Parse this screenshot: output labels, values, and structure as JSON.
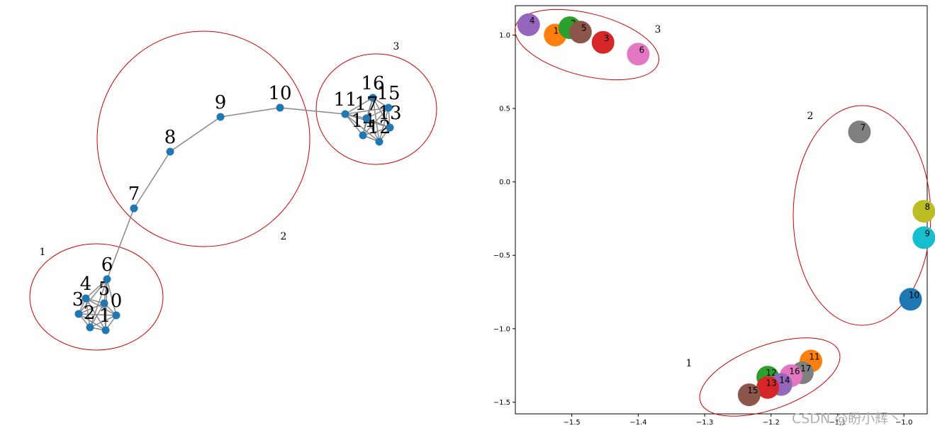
{
  "chart_data": [
    {
      "type": "network",
      "nodes": [
        {
          "id": "0"
        },
        {
          "id": "1"
        },
        {
          "id": "2"
        },
        {
          "id": "3"
        },
        {
          "id": "4"
        },
        {
          "id": "5"
        },
        {
          "id": "6"
        },
        {
          "id": "7"
        },
        {
          "id": "8"
        },
        {
          "id": "9"
        },
        {
          "id": "10"
        },
        {
          "id": "11"
        },
        {
          "id": "12"
        },
        {
          "id": "13"
        },
        {
          "id": "14"
        },
        {
          "id": "15"
        },
        {
          "id": "16"
        },
        {
          "id": "17"
        }
      ],
      "edges": [
        [
          "0",
          "1"
        ],
        [
          "0",
          "2"
        ],
        [
          "0",
          "3"
        ],
        [
          "0",
          "4"
        ],
        [
          "0",
          "5"
        ],
        [
          "0",
          "6"
        ],
        [
          "1",
          "2"
        ],
        [
          "1",
          "3"
        ],
        [
          "1",
          "4"
        ],
        [
          "1",
          "5"
        ],
        [
          "1",
          "6"
        ],
        [
          "2",
          "3"
        ],
        [
          "2",
          "4"
        ],
        [
          "2",
          "5"
        ],
        [
          "2",
          "6"
        ],
        [
          "3",
          "4"
        ],
        [
          "3",
          "5"
        ],
        [
          "3",
          "6"
        ],
        [
          "4",
          "5"
        ],
        [
          "4",
          "6"
        ],
        [
          "5",
          "6"
        ],
        [
          "6",
          "7"
        ],
        [
          "7",
          "8"
        ],
        [
          "8",
          "9"
        ],
        [
          "9",
          "10"
        ],
        [
          "10",
          "11"
        ],
        [
          "11",
          "12"
        ],
        [
          "11",
          "13"
        ],
        [
          "11",
          "14"
        ],
        [
          "11",
          "15"
        ],
        [
          "11",
          "16"
        ],
        [
          "11",
          "17"
        ],
        [
          "12",
          "13"
        ],
        [
          "12",
          "14"
        ],
        [
          "12",
          "15"
        ],
        [
          "12",
          "16"
        ],
        [
          "12",
          "17"
        ],
        [
          "13",
          "14"
        ],
        [
          "13",
          "15"
        ],
        [
          "13",
          "16"
        ],
        [
          "13",
          "17"
        ],
        [
          "14",
          "15"
        ],
        [
          "14",
          "16"
        ],
        [
          "14",
          "17"
        ],
        [
          "15",
          "16"
        ],
        [
          "15",
          "17"
        ],
        [
          "16",
          "17"
        ]
      ],
      "clusters": [
        {
          "label": "1",
          "nodes": [
            "0",
            "1",
            "2",
            "3",
            "4",
            "5",
            "6"
          ]
        },
        {
          "label": "2",
          "nodes": [
            "7",
            "8",
            "9",
            "10"
          ]
        },
        {
          "label": "3",
          "nodes": [
            "11",
            "12",
            "13",
            "14",
            "15",
            "16",
            "17"
          ]
        }
      ],
      "node_color": "#1f77b4",
      "edge_color": "#888888",
      "cluster_color": "#cc0000"
    },
    {
      "type": "scatter",
      "xlim": [
        -1.585,
        -0.965
      ],
      "ylim": [
        -1.58,
        1.2
      ],
      "xticks": [
        -1.5,
        -1.4,
        -1.3,
        -1.2,
        -1.1,
        -1.0
      ],
      "yticks": [
        -1.5,
        -1.0,
        -0.5,
        0.0,
        0.5,
        1.0
      ],
      "xtick_labels": [
        "−1.5",
        "−1.4",
        "−1.3",
        "−1.2",
        "−1.1",
        "−1.0"
      ],
      "ytick_labels": [
        "−1.5",
        "−1.0",
        "−0.5",
        "0.0",
        "0.5",
        "1.0"
      ],
      "points": [
        {
          "label": "4",
          "x": -1.565,
          "y": 1.07,
          "color": "#9467bd"
        },
        {
          "label": "10",
          "x": -1.525,
          "y": 1.0,
          "color": "#ff7f0e"
        },
        {
          "label": "2",
          "x": -1.503,
          "y": 1.05,
          "color": "#2ca02c"
        },
        {
          "label": "5",
          "x": -1.487,
          "y": 1.02,
          "color": "#8c564b"
        },
        {
          "label": "3",
          "x": -1.453,
          "y": 0.95,
          "color": "#d62728"
        },
        {
          "label": "6",
          "x": -1.4,
          "y": 0.87,
          "color": "#e377c2"
        },
        {
          "label": "7",
          "x": -1.067,
          "y": 0.34,
          "color": "#7f7f7f"
        },
        {
          "label": "8",
          "x": -0.97,
          "y": -0.2,
          "color": "#bcbd22"
        },
        {
          "label": "9",
          "x": -0.97,
          "y": -0.38,
          "color": "#17becf"
        },
        {
          "label": "10",
          "x": -0.99,
          "y": -0.8,
          "color": "#1f77b4"
        },
        {
          "label": "11",
          "x": -1.14,
          "y": -1.22,
          "color": "#ff7f0e"
        },
        {
          "label": "17",
          "x": -1.153,
          "y": -1.3,
          "color": "#7f7f7f"
        },
        {
          "label": "16",
          "x": -1.17,
          "y": -1.32,
          "color": "#e377c2"
        },
        {
          "label": "12",
          "x": -1.205,
          "y": -1.33,
          "color": "#2ca02c"
        },
        {
          "label": "14",
          "x": -1.185,
          "y": -1.38,
          "color": "#9467bd"
        },
        {
          "label": "13",
          "x": -1.205,
          "y": -1.4,
          "color": "#d62728"
        },
        {
          "label": "15",
          "x": -1.233,
          "y": -1.45,
          "color": "#8c564b"
        }
      ],
      "clusters": [
        {
          "label": "1",
          "points": [
            "11",
            "12",
            "13",
            "14",
            "15",
            "16",
            "17"
          ]
        },
        {
          "label": "2",
          "points": [
            "7",
            "8",
            "9",
            "10"
          ]
        },
        {
          "label": "3",
          "points": [
            "2",
            "3",
            "4",
            "5",
            "6",
            "10"
          ]
        }
      ],
      "cluster_color": "#cc0000"
    }
  ],
  "watermark": "CSDN @盼小辉丶"
}
